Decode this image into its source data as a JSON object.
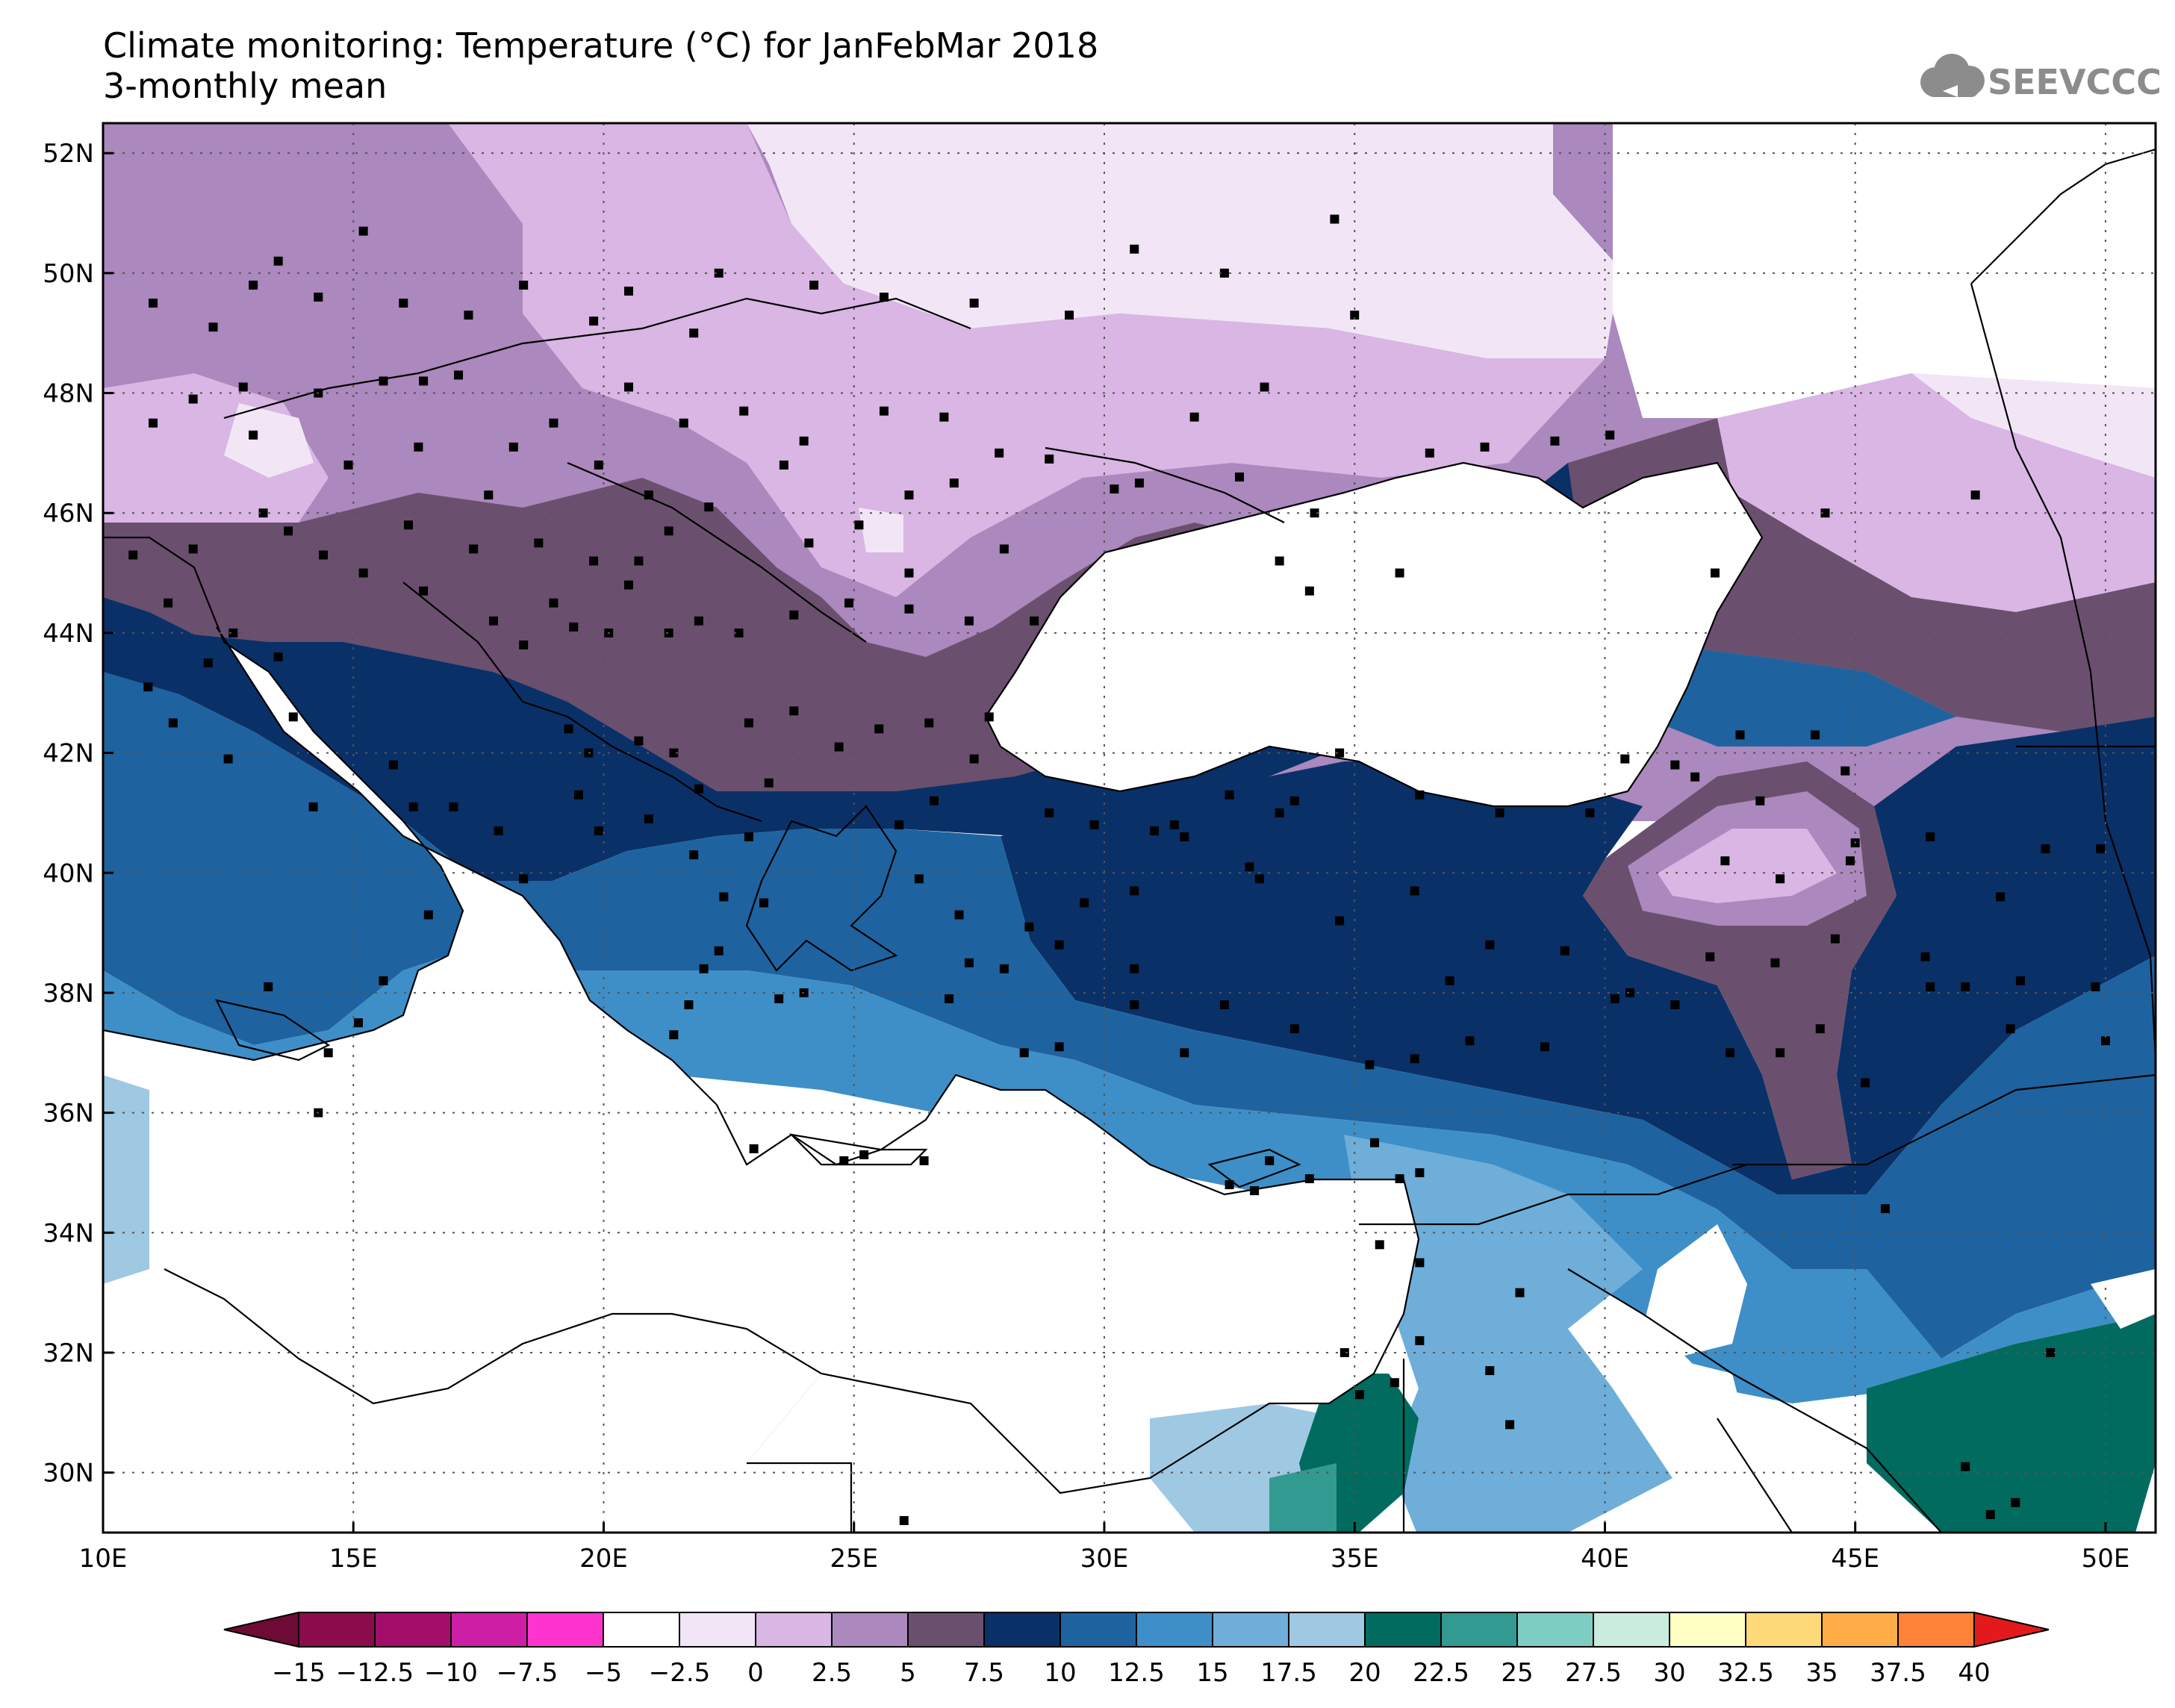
{
  "title": {
    "line1": "Climate monitoring: Temperature (°C) for JanFebMar 2018",
    "line2": "3-monthly mean"
  },
  "logo": {
    "text": "SEEVCCC",
    "icon": "cloud-icon"
  },
  "map": {
    "lon_range": [
      10,
      51
    ],
    "lat_range": [
      29,
      52.5
    ],
    "lon_ticks": [
      {
        "value": 10,
        "label": "10E"
      },
      {
        "value": 15,
        "label": "15E"
      },
      {
        "value": 20,
        "label": "20E"
      },
      {
        "value": 25,
        "label": "25E"
      },
      {
        "value": 30,
        "label": "30E"
      },
      {
        "value": 35,
        "label": "35E"
      },
      {
        "value": 40,
        "label": "40E"
      },
      {
        "value": 45,
        "label": "45E"
      },
      {
        "value": 50,
        "label": "50E"
      }
    ],
    "lat_ticks": [
      {
        "value": 30,
        "label": "30N"
      },
      {
        "value": 32,
        "label": "32N"
      },
      {
        "value": 34,
        "label": "34N"
      },
      {
        "value": 36,
        "label": "36N"
      },
      {
        "value": 38,
        "label": "38N"
      },
      {
        "value": 40,
        "label": "40N"
      },
      {
        "value": 42,
        "label": "42N"
      },
      {
        "value": 44,
        "label": "44N"
      },
      {
        "value": 46,
        "label": "46N"
      },
      {
        "value": 48,
        "label": "48N"
      },
      {
        "value": 50,
        "label": "50N"
      },
      {
        "value": 52,
        "label": "52N"
      }
    ],
    "grid": true,
    "stations": [
      [
        13.5,
        50.2
      ],
      [
        15.2,
        50.7
      ],
      [
        14.3,
        49.6
      ],
      [
        12.2,
        49.1
      ],
      [
        11.0,
        49.5
      ],
      [
        13.0,
        49.8
      ],
      [
        16.0,
        49.5
      ],
      [
        17.3,
        49.3
      ],
      [
        18.4,
        49.8
      ],
      [
        17.1,
        48.3
      ],
      [
        16.4,
        48.2
      ],
      [
        15.6,
        48.2
      ],
      [
        14.3,
        48.0
      ],
      [
        12.8,
        48.1
      ],
      [
        11.8,
        47.9
      ],
      [
        11.0,
        47.5
      ],
      [
        13.0,
        47.3
      ],
      [
        14.9,
        46.8
      ],
      [
        16.3,
        47.1
      ],
      [
        19.0,
        47.5
      ],
      [
        19.9,
        46.8
      ],
      [
        18.2,
        47.1
      ],
      [
        17.7,
        46.3
      ],
      [
        20.9,
        46.3
      ],
      [
        21.6,
        47.5
      ],
      [
        22.8,
        47.7
      ],
      [
        20.5,
        48.1
      ],
      [
        21.8,
        49.0
      ],
      [
        19.8,
        49.2
      ],
      [
        20.5,
        49.7
      ],
      [
        22.3,
        50.0
      ],
      [
        24.2,
        49.8
      ],
      [
        25.6,
        49.6
      ],
      [
        27.4,
        49.5
      ],
      [
        29.3,
        49.3
      ],
      [
        30.6,
        50.4
      ],
      [
        32.4,
        50.0
      ],
      [
        34.6,
        50.9
      ],
      [
        35.0,
        49.3
      ],
      [
        33.2,
        48.1
      ],
      [
        31.8,
        47.6
      ],
      [
        30.7,
        46.5
      ],
      [
        28.9,
        46.9
      ],
      [
        27.9,
        47.0
      ],
      [
        26.8,
        47.6
      ],
      [
        25.6,
        47.7
      ],
      [
        24.0,
        47.2
      ],
      [
        23.6,
        46.8
      ],
      [
        22.1,
        46.1
      ],
      [
        21.3,
        45.7
      ],
      [
        20.7,
        45.2
      ],
      [
        19.8,
        45.2
      ],
      [
        20.5,
        44.8
      ],
      [
        21.3,
        44.0
      ],
      [
        19.4,
        44.1
      ],
      [
        18.4,
        43.8
      ],
      [
        17.8,
        44.2
      ],
      [
        16.4,
        44.7
      ],
      [
        15.2,
        45.0
      ],
      [
        14.4,
        45.3
      ],
      [
        13.7,
        45.7
      ],
      [
        16.1,
        45.8
      ],
      [
        17.4,
        45.4
      ],
      [
        18.7,
        45.5
      ],
      [
        19.0,
        44.5
      ],
      [
        20.1,
        44.0
      ],
      [
        21.9,
        44.2
      ],
      [
        22.7,
        44.0
      ],
      [
        23.8,
        44.3
      ],
      [
        24.9,
        44.5
      ],
      [
        26.1,
        44.4
      ],
      [
        27.3,
        44.2
      ],
      [
        28.6,
        44.2
      ],
      [
        28.0,
        45.4
      ],
      [
        26.1,
        45.0
      ],
      [
        25.1,
        45.8
      ],
      [
        24.1,
        45.5
      ],
      [
        26.1,
        46.3
      ],
      [
        27.0,
        46.5
      ],
      [
        23.8,
        42.7
      ],
      [
        24.7,
        42.1
      ],
      [
        22.9,
        42.5
      ],
      [
        21.4,
        42.0
      ],
      [
        20.7,
        42.2
      ],
      [
        19.3,
        42.4
      ],
      [
        21.9,
        41.4
      ],
      [
        23.3,
        41.5
      ],
      [
        25.5,
        42.4
      ],
      [
        26.5,
        42.5
      ],
      [
        27.7,
        42.6
      ],
      [
        27.4,
        41.9
      ],
      [
        26.6,
        41.2
      ],
      [
        28.9,
        41.0
      ],
      [
        29.8,
        40.8
      ],
      [
        31.6,
        40.6
      ],
      [
        33.5,
        41.0
      ],
      [
        34.7,
        42.0
      ],
      [
        36.3,
        41.3
      ],
      [
        37.9,
        41.0
      ],
      [
        39.7,
        41.0
      ],
      [
        41.8,
        41.6
      ],
      [
        43.1,
        41.2
      ],
      [
        44.8,
        41.7
      ],
      [
        45.0,
        40.5
      ],
      [
        46.5,
        40.6
      ],
      [
        48.8,
        40.4
      ],
      [
        49.9,
        40.4
      ],
      [
        47.2,
        38.1
      ],
      [
        48.1,
        37.4
      ],
      [
        46.4,
        38.6
      ],
      [
        44.6,
        38.9
      ],
      [
        43.4,
        38.5
      ],
      [
        42.1,
        38.6
      ],
      [
        40.5,
        38.0
      ],
      [
        39.2,
        38.7
      ],
      [
        37.7,
        38.8
      ],
      [
        36.2,
        39.7
      ],
      [
        34.7,
        39.2
      ],
      [
        33.1,
        39.9
      ],
      [
        32.9,
        40.1
      ],
      [
        31.4,
        40.8
      ],
      [
        30.6,
        39.7
      ],
      [
        29.6,
        39.5
      ],
      [
        28.5,
        39.1
      ],
      [
        27.3,
        38.5
      ],
      [
        26.9,
        37.9
      ],
      [
        28.4,
        37.0
      ],
      [
        29.1,
        37.1
      ],
      [
        30.6,
        37.8
      ],
      [
        31.6,
        37.0
      ],
      [
        32.4,
        37.8
      ],
      [
        33.8,
        37.4
      ],
      [
        35.3,
        36.8
      ],
      [
        36.2,
        36.9
      ],
      [
        37.3,
        37.2
      ],
      [
        38.8,
        37.1
      ],
      [
        40.2,
        37.9
      ],
      [
        41.4,
        37.8
      ],
      [
        42.5,
        37.0
      ],
      [
        43.5,
        37.0
      ],
      [
        44.3,
        37.4
      ],
      [
        45.2,
        36.5
      ],
      [
        38.3,
        33.0
      ],
      [
        37.7,
        31.7
      ],
      [
        36.3,
        32.2
      ],
      [
        35.8,
        31.5
      ],
      [
        35.1,
        31.3
      ],
      [
        34.8,
        32.0
      ],
      [
        35.5,
        33.8
      ],
      [
        36.3,
        33.5
      ],
      [
        35.9,
        34.9
      ],
      [
        35.4,
        35.5
      ],
      [
        36.3,
        35.0
      ],
      [
        33.0,
        34.7
      ],
      [
        32.5,
        34.8
      ],
      [
        33.3,
        35.2
      ],
      [
        34.1,
        34.9
      ],
      [
        23.0,
        35.4
      ],
      [
        24.8,
        35.2
      ],
      [
        25.2,
        35.3
      ],
      [
        26.4,
        35.2
      ],
      [
        24.0,
        38.0
      ],
      [
        23.5,
        37.9
      ],
      [
        22.0,
        38.4
      ],
      [
        21.7,
        37.8
      ],
      [
        21.4,
        37.3
      ],
      [
        22.3,
        38.7
      ],
      [
        23.2,
        39.5
      ],
      [
        22.4,
        39.6
      ],
      [
        21.8,
        40.3
      ],
      [
        22.9,
        40.6
      ],
      [
        20.9,
        40.9
      ],
      [
        19.9,
        40.7
      ],
      [
        19.5,
        41.3
      ],
      [
        19.7,
        42.0
      ],
      [
        25.9,
        40.8
      ],
      [
        26.3,
        39.9
      ],
      [
        27.1,
        39.3
      ],
      [
        28.0,
        38.4
      ],
      [
        29.1,
        38.8
      ],
      [
        30.6,
        38.4
      ],
      [
        31.0,
        40.7
      ],
      [
        32.5,
        41.3
      ],
      [
        33.8,
        41.2
      ],
      [
        14.3,
        36.0
      ],
      [
        14.5,
        37.0
      ],
      [
        15.1,
        37.5
      ],
      [
        13.3,
        38.1
      ],
      [
        15.6,
        38.2
      ],
      [
        16.5,
        39.3
      ],
      [
        16.2,
        41.1
      ],
      [
        17.0,
        41.1
      ],
      [
        18.4,
        39.9
      ],
      [
        17.9,
        40.7
      ],
      [
        15.8,
        41.8
      ],
      [
        14.2,
        41.1
      ],
      [
        13.8,
        42.6
      ],
      [
        12.5,
        41.9
      ],
      [
        11.4,
        42.5
      ],
      [
        10.9,
        43.1
      ],
      [
        12.1,
        43.5
      ],
      [
        13.5,
        43.6
      ],
      [
        11.3,
        44.5
      ],
      [
        12.6,
        44.0
      ],
      [
        10.6,
        45.3
      ],
      [
        11.8,
        45.4
      ],
      [
        13.2,
        46.0
      ],
      [
        35.9,
        45.0
      ],
      [
        34.1,
        44.7
      ],
      [
        33.5,
        45.2
      ],
      [
        34.2,
        46.0
      ],
      [
        32.7,
        46.6
      ],
      [
        30.2,
        46.4
      ],
      [
        36.5,
        47.0
      ],
      [
        37.6,
        47.1
      ],
      [
        39.0,
        47.2
      ],
      [
        40.1,
        47.3
      ],
      [
        42.2,
        45.0
      ],
      [
        44.4,
        46.0
      ],
      [
        47.4,
        46.3
      ],
      [
        44.2,
        42.3
      ],
      [
        42.7,
        42.3
      ],
      [
        41.4,
        41.8
      ],
      [
        40.4,
        41.9
      ],
      [
        26.0,
        29.2
      ],
      [
        38.1,
        30.8
      ],
      [
        47.7,
        29.3
      ],
      [
        47.2,
        30.1
      ],
      [
        48.2,
        29.5
      ],
      [
        45.6,
        34.4
      ],
      [
        48.9,
        32.0
      ],
      [
        50.0,
        37.2
      ],
      [
        49.8,
        38.1
      ],
      [
        48.3,
        38.2
      ],
      [
        47.9,
        39.6
      ],
      [
        46.5,
        38.1
      ],
      [
        36.9,
        38.2
      ],
      [
        42.4,
        40.2
      ],
      [
        43.5,
        39.9
      ],
      [
        44.9,
        40.2
      ]
    ],
    "colorbar": {
      "labels": [
        "−15",
        "−12.5",
        "−10",
        "−7.5",
        "−5",
        "−2.5",
        "0",
        "2.5",
        "5",
        "7.5",
        "10",
        "12.5",
        "15",
        "17.5",
        "20",
        "22.5",
        "25",
        "27.5",
        "30",
        "32.5",
        "35",
        "37.5",
        "40"
      ],
      "colors": [
        "#8a0c4a",
        "#a20e6a",
        "#cc1fa6",
        "#ff34cf",
        "#ffffff",
        "#f2e6f6",
        "#d9b6e4",
        "#ab88bd",
        "#6a506e",
        "#0a3068",
        "#1e63a0",
        "#3e8fc8",
        "#6eaed9",
        "#9fc8e2",
        "#006b5e",
        "#339a91",
        "#7ecdc2",
        "#c9ecde",
        "#ffffc4",
        "#ffda7a",
        "#ffae47",
        "#ff8236",
        "#ff4628",
        "#e31a1c"
      ],
      "under_color": "#6d0a35",
      "over_color": "#e31a1c"
    }
  }
}
